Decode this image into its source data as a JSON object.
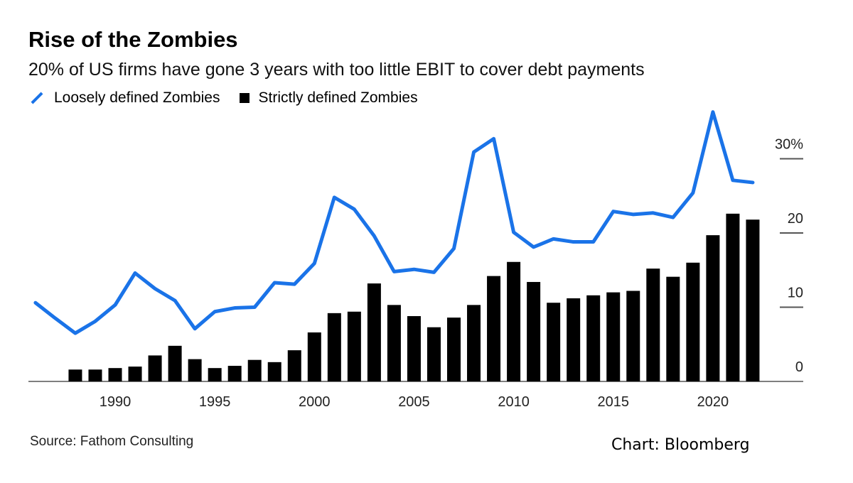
{
  "chart_data": {
    "type": "bar+line",
    "title": "Rise of the Zombies",
    "subtitle": "20% of US firms have gone 3 years with too little EBIT to cover debt payments",
    "source": "Source: Fathom Consulting",
    "credit": "Chart: Bloomberg",
    "y_ticks": [
      "30%",
      "20",
      "10",
      "0"
    ],
    "y_tick_values": [
      30,
      20,
      10,
      0
    ],
    "ylim": [
      0,
      37
    ],
    "x_ticks": [
      "1990",
      "1995",
      "2000",
      "2005",
      "2010",
      "2015",
      "2020"
    ],
    "x_tick_values": [
      1990,
      1995,
      2000,
      2005,
      2010,
      2015,
      2020
    ],
    "xlim": [
      1986,
      2023
    ],
    "colors": {
      "line": "#1a73e8",
      "bars": "#000000"
    },
    "series": [
      {
        "name": "Loosely defined Zombies",
        "type": "line",
        "x": [
          1986,
          1987,
          1988,
          1989,
          1990,
          1991,
          1992,
          1993,
          1994,
          1995,
          1996,
          1997,
          1998,
          1999,
          2000,
          2001,
          2002,
          2003,
          2004,
          2005,
          2006,
          2007,
          2008,
          2009,
          2010,
          2011,
          2012,
          2013,
          2014,
          2015,
          2016,
          2017,
          2018,
          2019,
          2020,
          2021,
          2022
        ],
        "values": [
          10.6,
          8.5,
          6.5,
          8.1,
          10.3,
          14.6,
          12.5,
          10.9,
          7.1,
          9.4,
          9.9,
          10.0,
          13.3,
          13.1,
          15.9,
          24.8,
          23.2,
          19.6,
          14.8,
          15.1,
          14.7,
          17.9,
          30.9,
          32.7,
          20.1,
          18.1,
          19.2,
          18.8,
          18.8,
          22.9,
          22.5,
          22.7,
          22.1,
          25.4,
          36.3,
          27.1,
          26.8
        ]
      },
      {
        "name": "Strictly defined Zombies",
        "type": "bar",
        "x": [
          1988,
          1989,
          1990,
          1991,
          1992,
          1993,
          1994,
          1995,
          1996,
          1997,
          1998,
          1999,
          2000,
          2001,
          2002,
          2003,
          2004,
          2005,
          2006,
          2007,
          2008,
          2009,
          2010,
          2011,
          2012,
          2013,
          2014,
          2015,
          2016,
          2017,
          2018,
          2019,
          2020,
          2021,
          2022
        ],
        "values": [
          1.6,
          1.6,
          1.8,
          2.0,
          3.5,
          4.8,
          3.0,
          1.8,
          2.1,
          2.9,
          2.6,
          4.2,
          6.6,
          9.2,
          9.4,
          13.2,
          10.3,
          8.8,
          7.3,
          8.6,
          10.3,
          14.2,
          16.1,
          13.4,
          10.6,
          11.2,
          11.6,
          12.0,
          12.2,
          15.2,
          14.1,
          16.0,
          19.7,
          22.6,
          21.8
        ]
      }
    ]
  }
}
